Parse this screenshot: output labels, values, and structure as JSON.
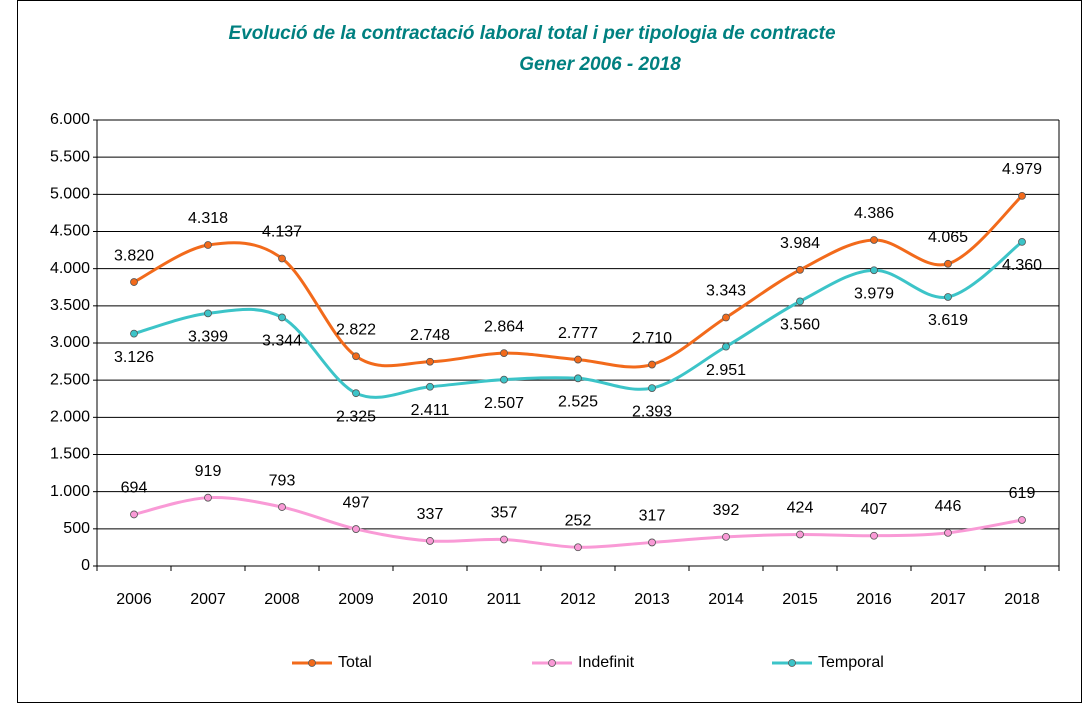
{
  "chart_data": {
    "type": "line",
    "title": "Evolució de la contractació laboral total i per tipologia de contracte",
    "subtitle": "Gener 2006 - 2018",
    "categories": [
      "2006",
      "2007",
      "2008",
      "2009",
      "2010",
      "2011",
      "2012",
      "2013",
      "2014",
      "2015",
      "2016",
      "2017",
      "2018"
    ],
    "series": [
      {
        "name": "Total",
        "color": "#f26a1b",
        "values": [
          3820,
          4318,
          4137,
          2822,
          2748,
          2864,
          2777,
          2710,
          3343,
          3984,
          4386,
          4065,
          4979
        ],
        "value_labels": [
          "3.820",
          "4.318",
          "4.137",
          "2.822",
          "2.748",
          "2.864",
          "2.777",
          "2.710",
          "3.343",
          "3.984",
          "4.386",
          "4.065",
          "4.979"
        ]
      },
      {
        "name": "Indefinit",
        "color": "#f99ad6",
        "values": [
          694,
          919,
          793,
          497,
          337,
          357,
          252,
          317,
          392,
          424,
          407,
          446,
          619
        ]
      },
      {
        "name": "Temporal",
        "color": "#3cc4c8",
        "values": [
          3126,
          3399,
          3344,
          2325,
          2411,
          2507,
          2525,
          2393,
          2951,
          3560,
          3979,
          3619,
          4360
        ],
        "value_labels": [
          "3.126",
          "3.399",
          "3.344",
          "2.325",
          "2.411",
          "2.507",
          "2.525",
          "2.393",
          "2.951",
          "3.560",
          "3.979",
          "3.619",
          "4.360"
        ]
      }
    ],
    "ylim": [
      0,
      6000
    ],
    "yticks": [
      0,
      500,
      {
        "value": 1000,
        "label": "1.000"
      },
      {
        "value": 1500,
        "label": "1.500"
      },
      {
        "value": 2000,
        "label": "2.000"
      },
      {
        "value": 2500,
        "label": "2.500"
      },
      {
        "value": 3000,
        "label": "3.000"
      },
      {
        "value": 3500,
        "label": "3.500"
      },
      {
        "value": 4000,
        "label": "4.000"
      },
      {
        "value": 4500,
        "label": "4.500"
      },
      {
        "value": 5000,
        "label": "5.000"
      },
      {
        "value": 5500,
        "label": "5.500"
      },
      {
        "value": 6000,
        "label": "6.000"
      }
    ],
    "grid": true,
    "legend": "bottom",
    "smooth": true
  }
}
